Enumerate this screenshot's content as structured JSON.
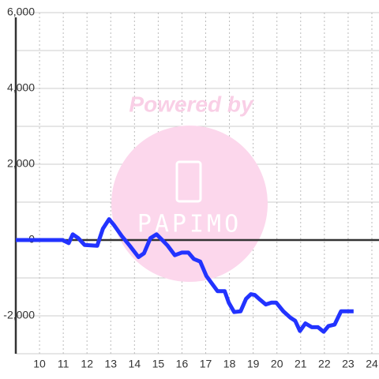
{
  "chart_data": {
    "type": "line",
    "watermark": "Powered by",
    "logo": "PAPIMO",
    "x": [
      9,
      10.97,
      11.23,
      11.4,
      11.63,
      11.9,
      12.43,
      12.67,
      12.93,
      13.13,
      13.47,
      13.8,
      14.17,
      14.4,
      14.67,
      14.93,
      15.17,
      15.4,
      15.7,
      16,
      16.27,
      16.5,
      16.77,
      17.03,
      17.5,
      17.8,
      17.97,
      18.2,
      18.47,
      18.7,
      18.9,
      19.07,
      19.3,
      19.53,
      19.77,
      19.97,
      20.27,
      20.57,
      20.77,
      20.97,
      21.2,
      21.47,
      21.73,
      21.97,
      22.17,
      22.43,
      22.7,
      23.23
    ],
    "series": [
      {
        "color": "#2233ff",
        "values": [
          0,
          0,
          -80,
          150,
          50,
          -130,
          -150,
          300,
          550,
          400,
          100,
          -150,
          -450,
          -350,
          50,
          150,
          0,
          -150,
          -400,
          -330,
          -330,
          -500,
          -570,
          -950,
          -1350,
          -1350,
          -1650,
          -1900,
          -1880,
          -1550,
          -1430,
          -1450,
          -1580,
          -1700,
          -1650,
          -1650,
          -1880,
          -2050,
          -2130,
          -2400,
          -2200,
          -2300,
          -2300,
          -2420,
          -2270,
          -2230,
          -1880,
          -1880
        ]
      }
    ],
    "xlim": [
      9,
      24.3
    ],
    "ylim": [
      -3000,
      6000
    ],
    "xticks": [
      10,
      11,
      12,
      13,
      14,
      15,
      16,
      17,
      18,
      19,
      20,
      21,
      22,
      23,
      24
    ],
    "yticks": [
      {
        "value": -2000,
        "label": "-2,000"
      },
      0,
      {
        "value": 2000,
        "label": "2,000"
      },
      {
        "value": 4000,
        "label": "4,000"
      },
      {
        "value": 6000,
        "label": "6,000"
      }
    ],
    "yminor": [
      -3000,
      -1000,
      1000,
      3000,
      5000
    ],
    "grid": true
  }
}
